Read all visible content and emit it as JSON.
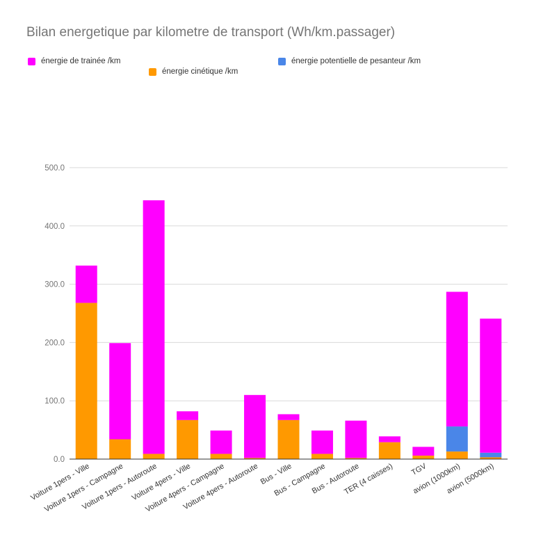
{
  "chart_data": {
    "type": "bar",
    "stacked": true,
    "title": "Bilan energetique par kilometre de transport (Wh/km.passager)",
    "xlabel": "",
    "ylabel": "",
    "ylim": [
      0,
      500
    ],
    "yticks": [
      "0.0",
      "100.0",
      "200.0",
      "300.0",
      "400.0",
      "500.0"
    ],
    "grid": true,
    "legend_position": "top",
    "categories": [
      "Voiture 1pers - Ville",
      "Voiture 1pers - Campagne",
      "Voiture 1pers - Autoroute",
      "Voiture 4pers - Ville",
      "Voiture 4pers - Campagne",
      "Voiture 4pers - Autoroute",
      "Bus - Ville",
      "Bus - Campagne",
      "Bus - Autoroute",
      "TER (4 caisses)",
      "TGV",
      "avion (1000km)",
      "avion (5000km)"
    ],
    "series": [
      {
        "name": "énergie cinétique /km",
        "color": "#ff9900",
        "values": [
          268,
          34,
          9,
          67,
          9,
          2,
          67,
          9,
          2,
          29,
          6,
          13,
          3
        ]
      },
      {
        "name": "énergie potentielle de pesanteur /km",
        "color": "#4a86e8",
        "values": [
          0,
          0,
          0,
          0,
          0,
          0,
          0,
          0,
          0,
          0,
          0,
          43,
          8
        ]
      },
      {
        "name": "énergie de trainée /km",
        "color": "#ff00ff",
        "values": [
          64,
          165,
          435,
          15,
          40,
          108,
          10,
          40,
          64,
          10,
          15,
          231,
          230
        ]
      }
    ]
  }
}
